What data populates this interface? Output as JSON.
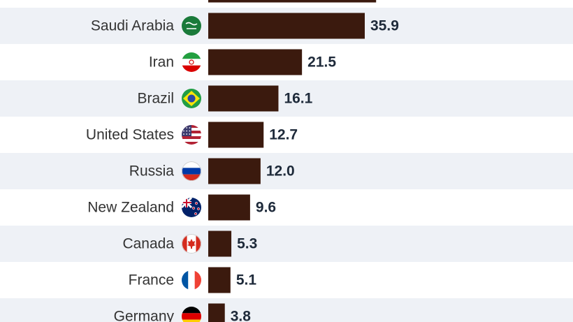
{
  "chart_data": {
    "type": "bar",
    "orientation": "horizontal",
    "categories": [
      "Saudi Arabia",
      "Iran",
      "Brazil",
      "United States",
      "Russia",
      "New Zealand",
      "Canada",
      "France",
      "Germany"
    ],
    "values": [
      35.9,
      21.5,
      16.1,
      12.7,
      12.0,
      9.6,
      5.3,
      5.1,
      3.8
    ],
    "value_labels": [
      "35.9",
      "21.5",
      "16.1",
      "12.7",
      "12.0",
      "9.6",
      "5.3",
      "5.1",
      "3.8"
    ],
    "partially_visible_top_bar": {
      "value": 38.5,
      "label": ""
    },
    "flags": [
      "saudi-arabia-flag",
      "iran-flag",
      "brazil-flag",
      "usa-flag",
      "russia-flag",
      "new-zealand-flag",
      "canada-flag",
      "france-flag",
      "germany-flag"
    ],
    "title": "",
    "xlabel": "",
    "ylabel": "",
    "xlim": [
      0,
      35.9
    ],
    "grid": false,
    "legend": "none",
    "colors": {
      "bar": "#3b1a0e",
      "row_band": "#eef1f6",
      "label": "#333333",
      "value": "#1e2a3a"
    }
  }
}
